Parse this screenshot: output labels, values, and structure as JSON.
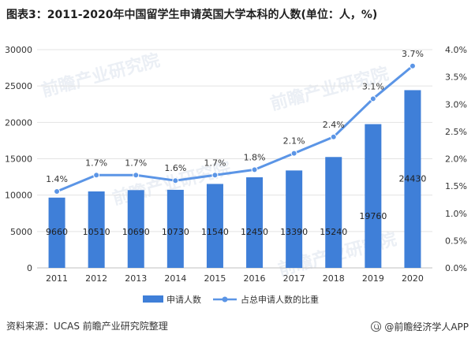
{
  "title": "图表3：2011-2020年中国留学生申请英国大学本科的人数(单位：人，%)",
  "source": "资料来源：UCAS 前瞻产业研究院整理",
  "brand": "@前瞻经济学人APP",
  "watermark": "前瞻产业研究院",
  "colors": {
    "bar": "#3f7fd8",
    "line": "#5b95e6",
    "grid": "#e3e3e3",
    "axis": "#bfbfbf"
  },
  "chart_data": {
    "type": "bar",
    "categories": [
      "2011",
      "2012",
      "2013",
      "2014",
      "2015",
      "2016",
      "2017",
      "2018",
      "2019",
      "2020"
    ],
    "series": [
      {
        "name": "申请人数",
        "type": "bar",
        "axis": "left",
        "values": [
          9660,
          10510,
          10690,
          10730,
          11540,
          12450,
          13390,
          15240,
          19760,
          24430
        ],
        "labels": [
          "9660",
          "10510",
          "10690",
          "10730",
          "11540",
          "12450",
          "13390",
          "15240",
          "19760",
          "24430"
        ]
      },
      {
        "name": "占总申请人数的比重",
        "type": "line",
        "axis": "right",
        "values": [
          1.4,
          1.7,
          1.7,
          1.6,
          1.7,
          1.8,
          2.1,
          2.4,
          3.1,
          3.7
        ],
        "labels": [
          "1.4%",
          "1.7%",
          "1.7%",
          "1.6%",
          "1.7%",
          "1.8%",
          "2.1%",
          "2.4%",
          "3.1%",
          "3.7%"
        ]
      }
    ],
    "ylim": [
      0,
      30000
    ],
    "yticks": [
      "0",
      "5000",
      "10000",
      "15000",
      "20000",
      "25000",
      "30000"
    ],
    "y2lim": [
      0,
      4.0
    ],
    "y2ticks": [
      "0.0%",
      "0.5%",
      "1.0%",
      "1.5%",
      "2.0%",
      "2.5%",
      "3.0%",
      "3.5%",
      "4.0%"
    ],
    "legend_position": "bottom",
    "grid": true
  }
}
